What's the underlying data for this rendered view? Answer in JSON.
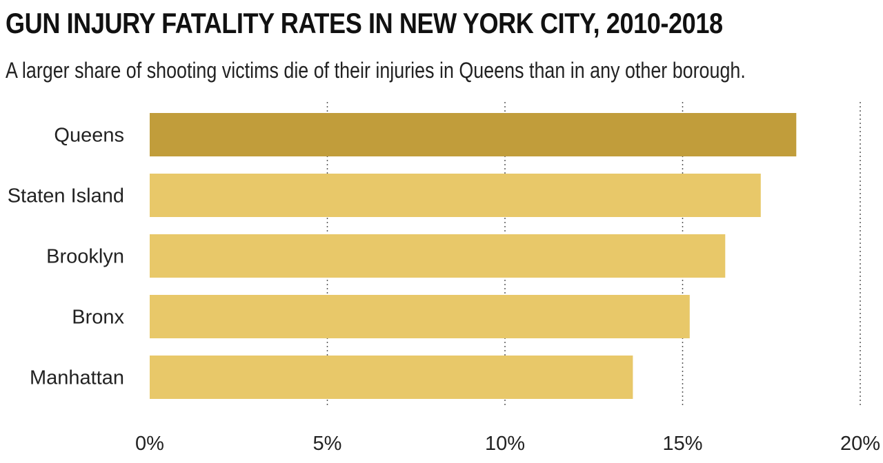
{
  "title": "GUN INJURY FATALITY RATES IN NEW YORK CITY, 2010-2018",
  "subtitle": "A larger share of shooting victims die of their injuries in Queens than in any other borough.",
  "colors": {
    "highlight": "#c19d3b",
    "bar": "#e8c869",
    "grid": "#555555",
    "text": "#222222"
  },
  "chart_data": {
    "type": "bar",
    "orientation": "horizontal",
    "title": "GUN INJURY FATALITY RATES IN NEW YORK CITY, 2010-2018",
    "subtitle": "A larger share of shooting victims die of their injuries in Queens than in any other borough.",
    "categories": [
      "Queens",
      "Staten Island",
      "Brooklyn",
      "Bronx",
      "Manhattan"
    ],
    "values": [
      18.2,
      17.2,
      16.2,
      15.2,
      13.6
    ],
    "highlighted": [
      "Queens"
    ],
    "xlim": [
      0,
      20
    ],
    "xticks": [
      0,
      5,
      10,
      15,
      20
    ],
    "xtick_labels": [
      "0%",
      "5%",
      "10%",
      "15%",
      "20%"
    ],
    "grid": "vertical dotted",
    "xlabel": "",
    "ylabel": ""
  }
}
